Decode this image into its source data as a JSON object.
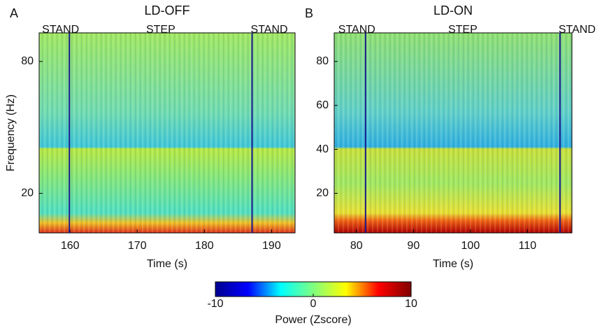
{
  "chart_data": [
    {
      "type": "heatmap",
      "panel_label": "A",
      "title": "LD-OFF",
      "x_label": "Time (s)",
      "y_label": "Frequency (Hz)",
      "xlim": [
        155.4,
        193.5
      ],
      "xticks": [
        160,
        170,
        180,
        190
      ],
      "ylim": [
        2,
        93
      ],
      "yticks": [
        20,
        80
      ],
      "phases": [
        "STAND",
        "STEP",
        "STAND"
      ],
      "event_lines": [
        159.9,
        187.1
      ],
      "event_color": "#1a1a8c"
    },
    {
      "type": "heatmap",
      "panel_label": "B",
      "title": "LD-ON",
      "x_label": "Time (s)",
      "xlim": [
        76.1,
        117.8
      ],
      "xticks": [
        80,
        90,
        100,
        110
      ],
      "ylim": [
        2,
        93
      ],
      "yticks": [
        20,
        40,
        60,
        80
      ],
      "phases": [
        "STAND",
        "STEP",
        "STAND"
      ],
      "event_lines": [
        81.6,
        115.7
      ],
      "event_color": "#1a1a8c"
    },
    {
      "type": "colorbar",
      "label": "Power (Zscore)",
      "clim": [
        -10,
        10
      ],
      "ticks": [
        -10,
        0,
        10
      ],
      "colors": [
        "#00008f",
        "#0000ff",
        "#00ffff",
        "#80ff80",
        "#ffff00",
        "#ff0000",
        "#800000"
      ]
    }
  ]
}
